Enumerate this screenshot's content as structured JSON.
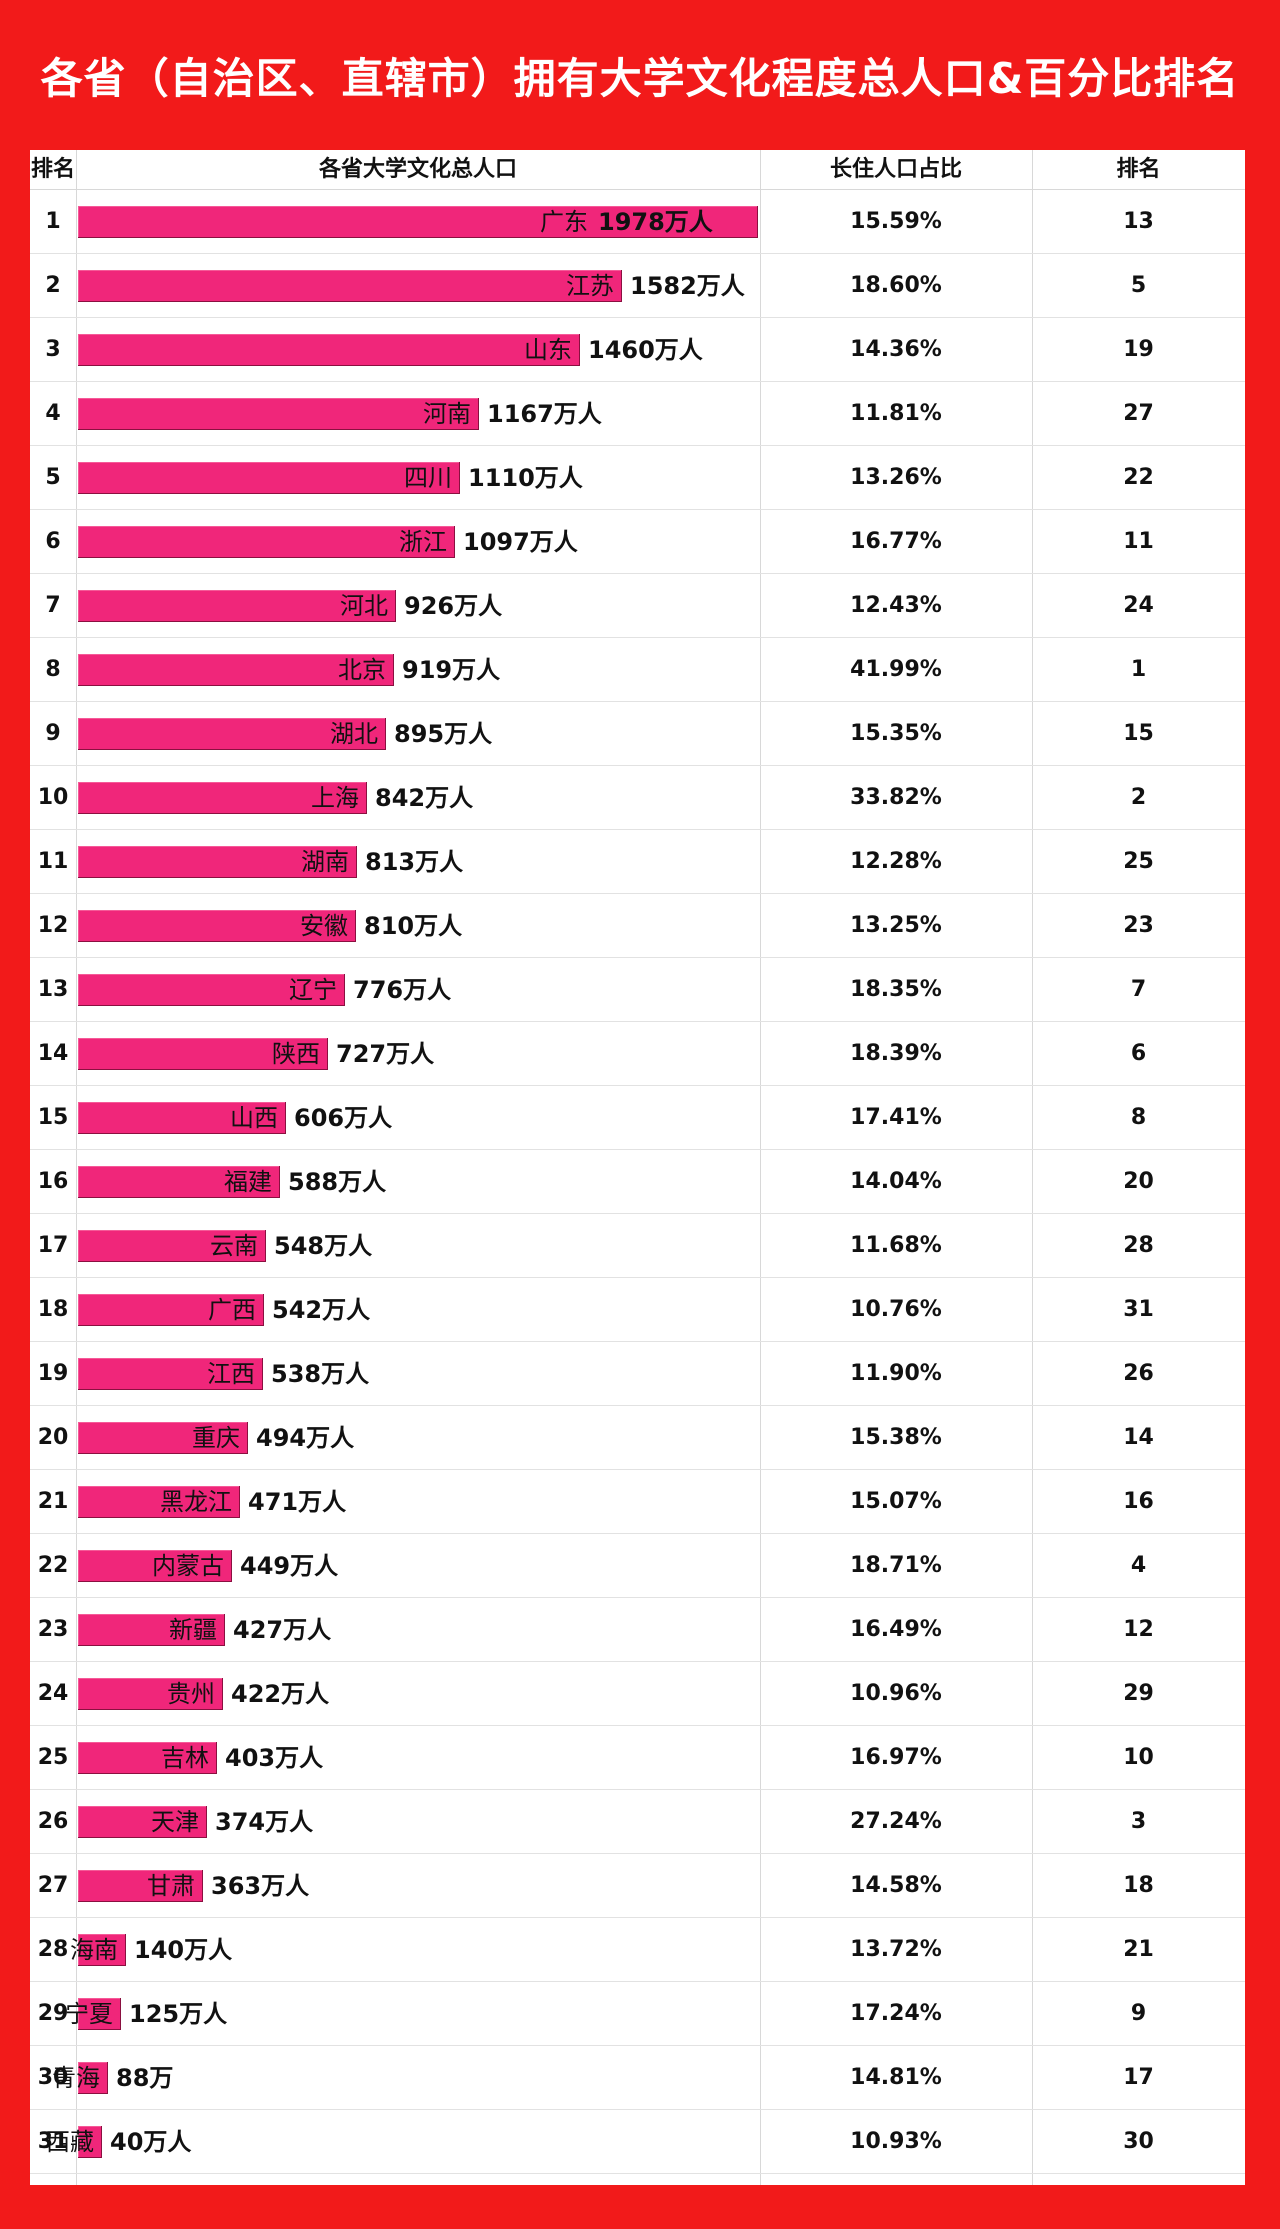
{
  "title": "各省（自治区、直辖市）拥有大学文化程度总人口&百分比排名",
  "headers": {
    "rank": "排名",
    "population": "各省大学文化总人口",
    "share": "长住人口占比",
    "share_rank": "排名"
  },
  "colors": {
    "background": "#f21a1a",
    "bar": "#f0267a"
  },
  "chart_data": {
    "type": "bar",
    "orientation": "horizontal",
    "unit": "万人",
    "rows": [
      {
        "rank": "1",
        "province": "广东",
        "value": 1978,
        "label": "1978万人",
        "share": "15.59%",
        "share_rank": "13"
      },
      {
        "rank": "2",
        "province": "江苏",
        "value": 1582,
        "label": "1582万人",
        "share": "18.60%",
        "share_rank": "5"
      },
      {
        "rank": "3",
        "province": "山东",
        "value": 1460,
        "label": "1460万人",
        "share": "14.36%",
        "share_rank": "19"
      },
      {
        "rank": "4",
        "province": "河南",
        "value": 1167,
        "label": "1167万人",
        "share": "11.81%",
        "share_rank": "27"
      },
      {
        "rank": "5",
        "province": "四川",
        "value": 1110,
        "label": "1110万人",
        "share": "13.26%",
        "share_rank": "22"
      },
      {
        "rank": "6",
        "province": "浙江",
        "value": 1097,
        "label": "1097万人",
        "share": "16.77%",
        "share_rank": "11"
      },
      {
        "rank": "7",
        "province": "河北",
        "value": 926,
        "label": "926万人",
        "share": "12.43%",
        "share_rank": "24"
      },
      {
        "rank": "8",
        "province": "北京",
        "value": 919,
        "label": "919万人",
        "share": "41.99%",
        "share_rank": "1"
      },
      {
        "rank": "9",
        "province": "湖北",
        "value": 895,
        "label": "895万人",
        "share": "15.35%",
        "share_rank": "15"
      },
      {
        "rank": "10",
        "province": "上海",
        "value": 842,
        "label": "842万人",
        "share": "33.82%",
        "share_rank": "2"
      },
      {
        "rank": "11",
        "province": "湖南",
        "value": 813,
        "label": "813万人",
        "share": "12.28%",
        "share_rank": "25"
      },
      {
        "rank": "12",
        "province": "安徽",
        "value": 810,
        "label": "810万人",
        "share": "13.25%",
        "share_rank": "23"
      },
      {
        "rank": "13",
        "province": "辽宁",
        "value": 776,
        "label": "776万人",
        "share": "18.35%",
        "share_rank": "7"
      },
      {
        "rank": "14",
        "province": "陕西",
        "value": 727,
        "label": "727万人",
        "share": "18.39%",
        "share_rank": "6"
      },
      {
        "rank": "15",
        "province": "山西",
        "value": 606,
        "label": "606万人",
        "share": "17.41%",
        "share_rank": "8"
      },
      {
        "rank": "16",
        "province": "福建",
        "value": 588,
        "label": "588万人",
        "share": "14.04%",
        "share_rank": "20"
      },
      {
        "rank": "17",
        "province": "云南",
        "value": 548,
        "label": "548万人",
        "share": "11.68%",
        "share_rank": "28"
      },
      {
        "rank": "18",
        "province": "广西",
        "value": 542,
        "label": "542万人",
        "share": "10.76%",
        "share_rank": "31"
      },
      {
        "rank": "19",
        "province": "江西",
        "value": 538,
        "label": "538万人",
        "share": "11.90%",
        "share_rank": "26"
      },
      {
        "rank": "20",
        "province": "重庆",
        "value": 494,
        "label": "494万人",
        "share": "15.38%",
        "share_rank": "14"
      },
      {
        "rank": "21",
        "province": "黑龙江",
        "value": 471,
        "label": "471万人",
        "share": "15.07%",
        "share_rank": "16"
      },
      {
        "rank": "22",
        "province": "内蒙古",
        "value": 449,
        "label": "449万人",
        "share": "18.71%",
        "share_rank": "4"
      },
      {
        "rank": "23",
        "province": "新疆",
        "value": 427,
        "label": "427万人",
        "share": "16.49%",
        "share_rank": "12"
      },
      {
        "rank": "24",
        "province": "贵州",
        "value": 422,
        "label": "422万人",
        "share": "10.96%",
        "share_rank": "29"
      },
      {
        "rank": "25",
        "province": "吉林",
        "value": 403,
        "label": "403万人",
        "share": "16.97%",
        "share_rank": "10"
      },
      {
        "rank": "26",
        "province": "天津",
        "value": 374,
        "label": "374万人",
        "share": "27.24%",
        "share_rank": "3"
      },
      {
        "rank": "27",
        "province": "甘肃",
        "value": 363,
        "label": "363万人",
        "share": "14.58%",
        "share_rank": "18"
      },
      {
        "rank": "28",
        "province": "海南",
        "value": 140,
        "label": "140万人",
        "share": "13.72%",
        "share_rank": "21"
      },
      {
        "rank": "29",
        "province": "宁夏",
        "value": 125,
        "label": "125万人",
        "share": "17.24%",
        "share_rank": "9"
      },
      {
        "rank": "30",
        "province": "青海",
        "value": 88,
        "label": "88万",
        "share": "14.81%",
        "share_rank": "17"
      },
      {
        "rank": "31",
        "province": "西藏",
        "value": 40,
        "label": "40万人",
        "share": "10.93%",
        "share_rank": "30"
      }
    ]
  }
}
